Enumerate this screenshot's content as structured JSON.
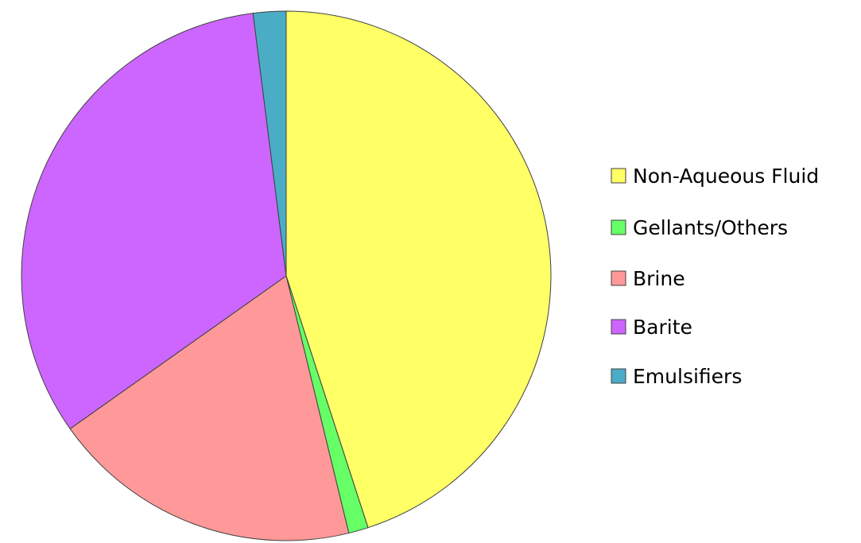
{
  "chart_data": {
    "type": "pie",
    "title": "",
    "categories": [
      "Non-Aqueous Fluid",
      "Gellants/Others",
      "Brine",
      "Barite",
      "Emulsifiers"
    ],
    "values": [
      45.0,
      1.2,
      19.0,
      32.8,
      2.0
    ],
    "unit": "%",
    "start_angle_deg": 0,
    "direction": "clockwise",
    "colors": [
      "#ffff66",
      "#66ff66",
      "#ff9999",
      "#cc66ff",
      "#4bacc6"
    ],
    "legend": {
      "position": "right",
      "items": [
        {
          "label": "Non-Aqueous Fluid",
          "color": "#ffff66"
        },
        {
          "label": "Gellants/Others",
          "color": "#66ff66"
        },
        {
          "label": "Brine",
          "color": "#ff9999"
        },
        {
          "label": "Barite",
          "color": "#cc66ff"
        },
        {
          "label": "Emulsifiers",
          "color": "#4bacc6"
        }
      ]
    }
  }
}
